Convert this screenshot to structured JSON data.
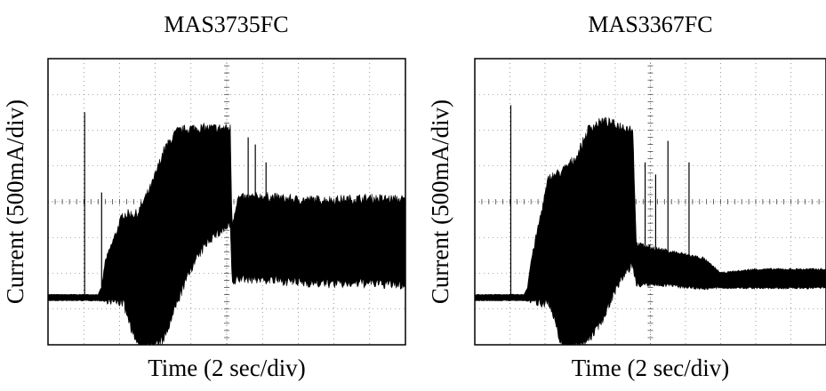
{
  "chart_data": [
    {
      "type": "line",
      "title": "MAS3735FC",
      "xlabel": "Time (2 sec/div)",
      "ylabel": "Current (500mA/div)",
      "x_divisions": 10,
      "y_divisions": 8,
      "xlim": [
        0,
        20
      ],
      "ylim": [
        -2000,
        2000
      ],
      "grid": true,
      "series": [
        {
          "color": "#000000",
          "envelope": {
            "x": [
              0,
              2.8,
              3.0,
              3.2,
              4.2,
              5.0,
              5.8,
              6.5,
              7.2,
              8.0,
              9.0,
              10.2,
              10.3,
              10.6,
              12,
              14,
              16,
              18,
              20
            ],
            "upper": [
              -1300,
              -1300,
              -1200,
              -850,
              -200,
              -200,
              200,
              700,
              950,
              1000,
              1000,
              1000,
              -350,
              20,
              50,
              0,
              0,
              20,
              0
            ],
            "lower": [
              -1380,
              -1380,
              -1380,
              -1380,
              -1380,
              -2000,
              -2000,
              -1900,
              -1400,
              -900,
              -500,
              -300,
              -1150,
              -1050,
              -1060,
              -1100,
              -1120,
              -1110,
              -1140
            ]
          },
          "spikes": [
            {
              "x": 2.05,
              "peak": 1250,
              "base": -1300
            },
            {
              "x": 3.0,
              "peak": 130,
              "base": -1200
            },
            {
              "x": 11.2,
              "peak": 900,
              "base": -100
            },
            {
              "x": 11.6,
              "peak": 800,
              "base": -100
            },
            {
              "x": 12.2,
              "peak": 550,
              "base": -100
            }
          ]
        }
      ]
    },
    {
      "type": "line",
      "title": "MAS3367FC",
      "xlabel": "Time (2 sec/div)",
      "ylabel": "Current (500mA/div)",
      "x_divisions": 10,
      "y_divisions": 8,
      "xlim": [
        0,
        20
      ],
      "ylim": [
        -2000,
        2000
      ],
      "grid": true,
      "series": [
        {
          "color": "#000000",
          "envelope": {
            "x": [
              0,
              2.8,
              3.0,
              3.2,
              4.2,
              5.0,
              5.8,
              6.5,
              7.3,
              8.0,
              8.8,
              9.0,
              9.2,
              10,
              11,
              12,
              13,
              14,
              16,
              18,
              20
            ],
            "upper": [
              -1300,
              -1300,
              -1200,
              -850,
              300,
              400,
              600,
              1000,
              1100,
              1050,
              1000,
              1000,
              -600,
              -650,
              -700,
              -750,
              -800,
              -1000,
              -950,
              -950,
              -950
            ],
            "lower": [
              -1380,
              -1380,
              -1380,
              -1380,
              -1380,
              -2000,
              -2000,
              -1900,
              -1600,
              -1200,
              -900,
              -850,
              -1150,
              -1150,
              -1150,
              -1180,
              -1200,
              -1200,
              -1200,
              -1200,
              -1200
            ]
          },
          "spikes": [
            {
              "x": 2.05,
              "peak": 1350,
              "base": -1300
            },
            {
              "x": 9.7,
              "peak": 550,
              "base": -700
            },
            {
              "x": 10.3,
              "peak": 380,
              "base": -700
            },
            {
              "x": 11.0,
              "peak": 850,
              "base": -700
            },
            {
              "x": 12.2,
              "peak": 550,
              "base": -750
            }
          ]
        }
      ]
    }
  ]
}
